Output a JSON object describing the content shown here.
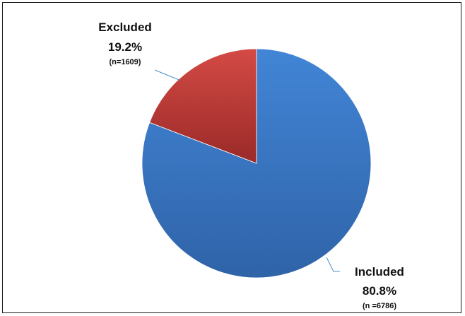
{
  "chart_data": {
    "type": "pie",
    "slices": [
      {
        "label": "Included",
        "value": 80.8,
        "percent_label": "80.8%",
        "count_label": "(n =6786)",
        "color": "#3f7cc8"
      },
      {
        "label": "Excluded",
        "value": 19.2,
        "percent_label": "19.2%",
        "count_label": "(n=1609)",
        "color": "#c03a38"
      }
    ],
    "start": "12 o'clock",
    "direction": "clockwise",
    "legend": "none",
    "leader_color": "#4a8fc8"
  }
}
